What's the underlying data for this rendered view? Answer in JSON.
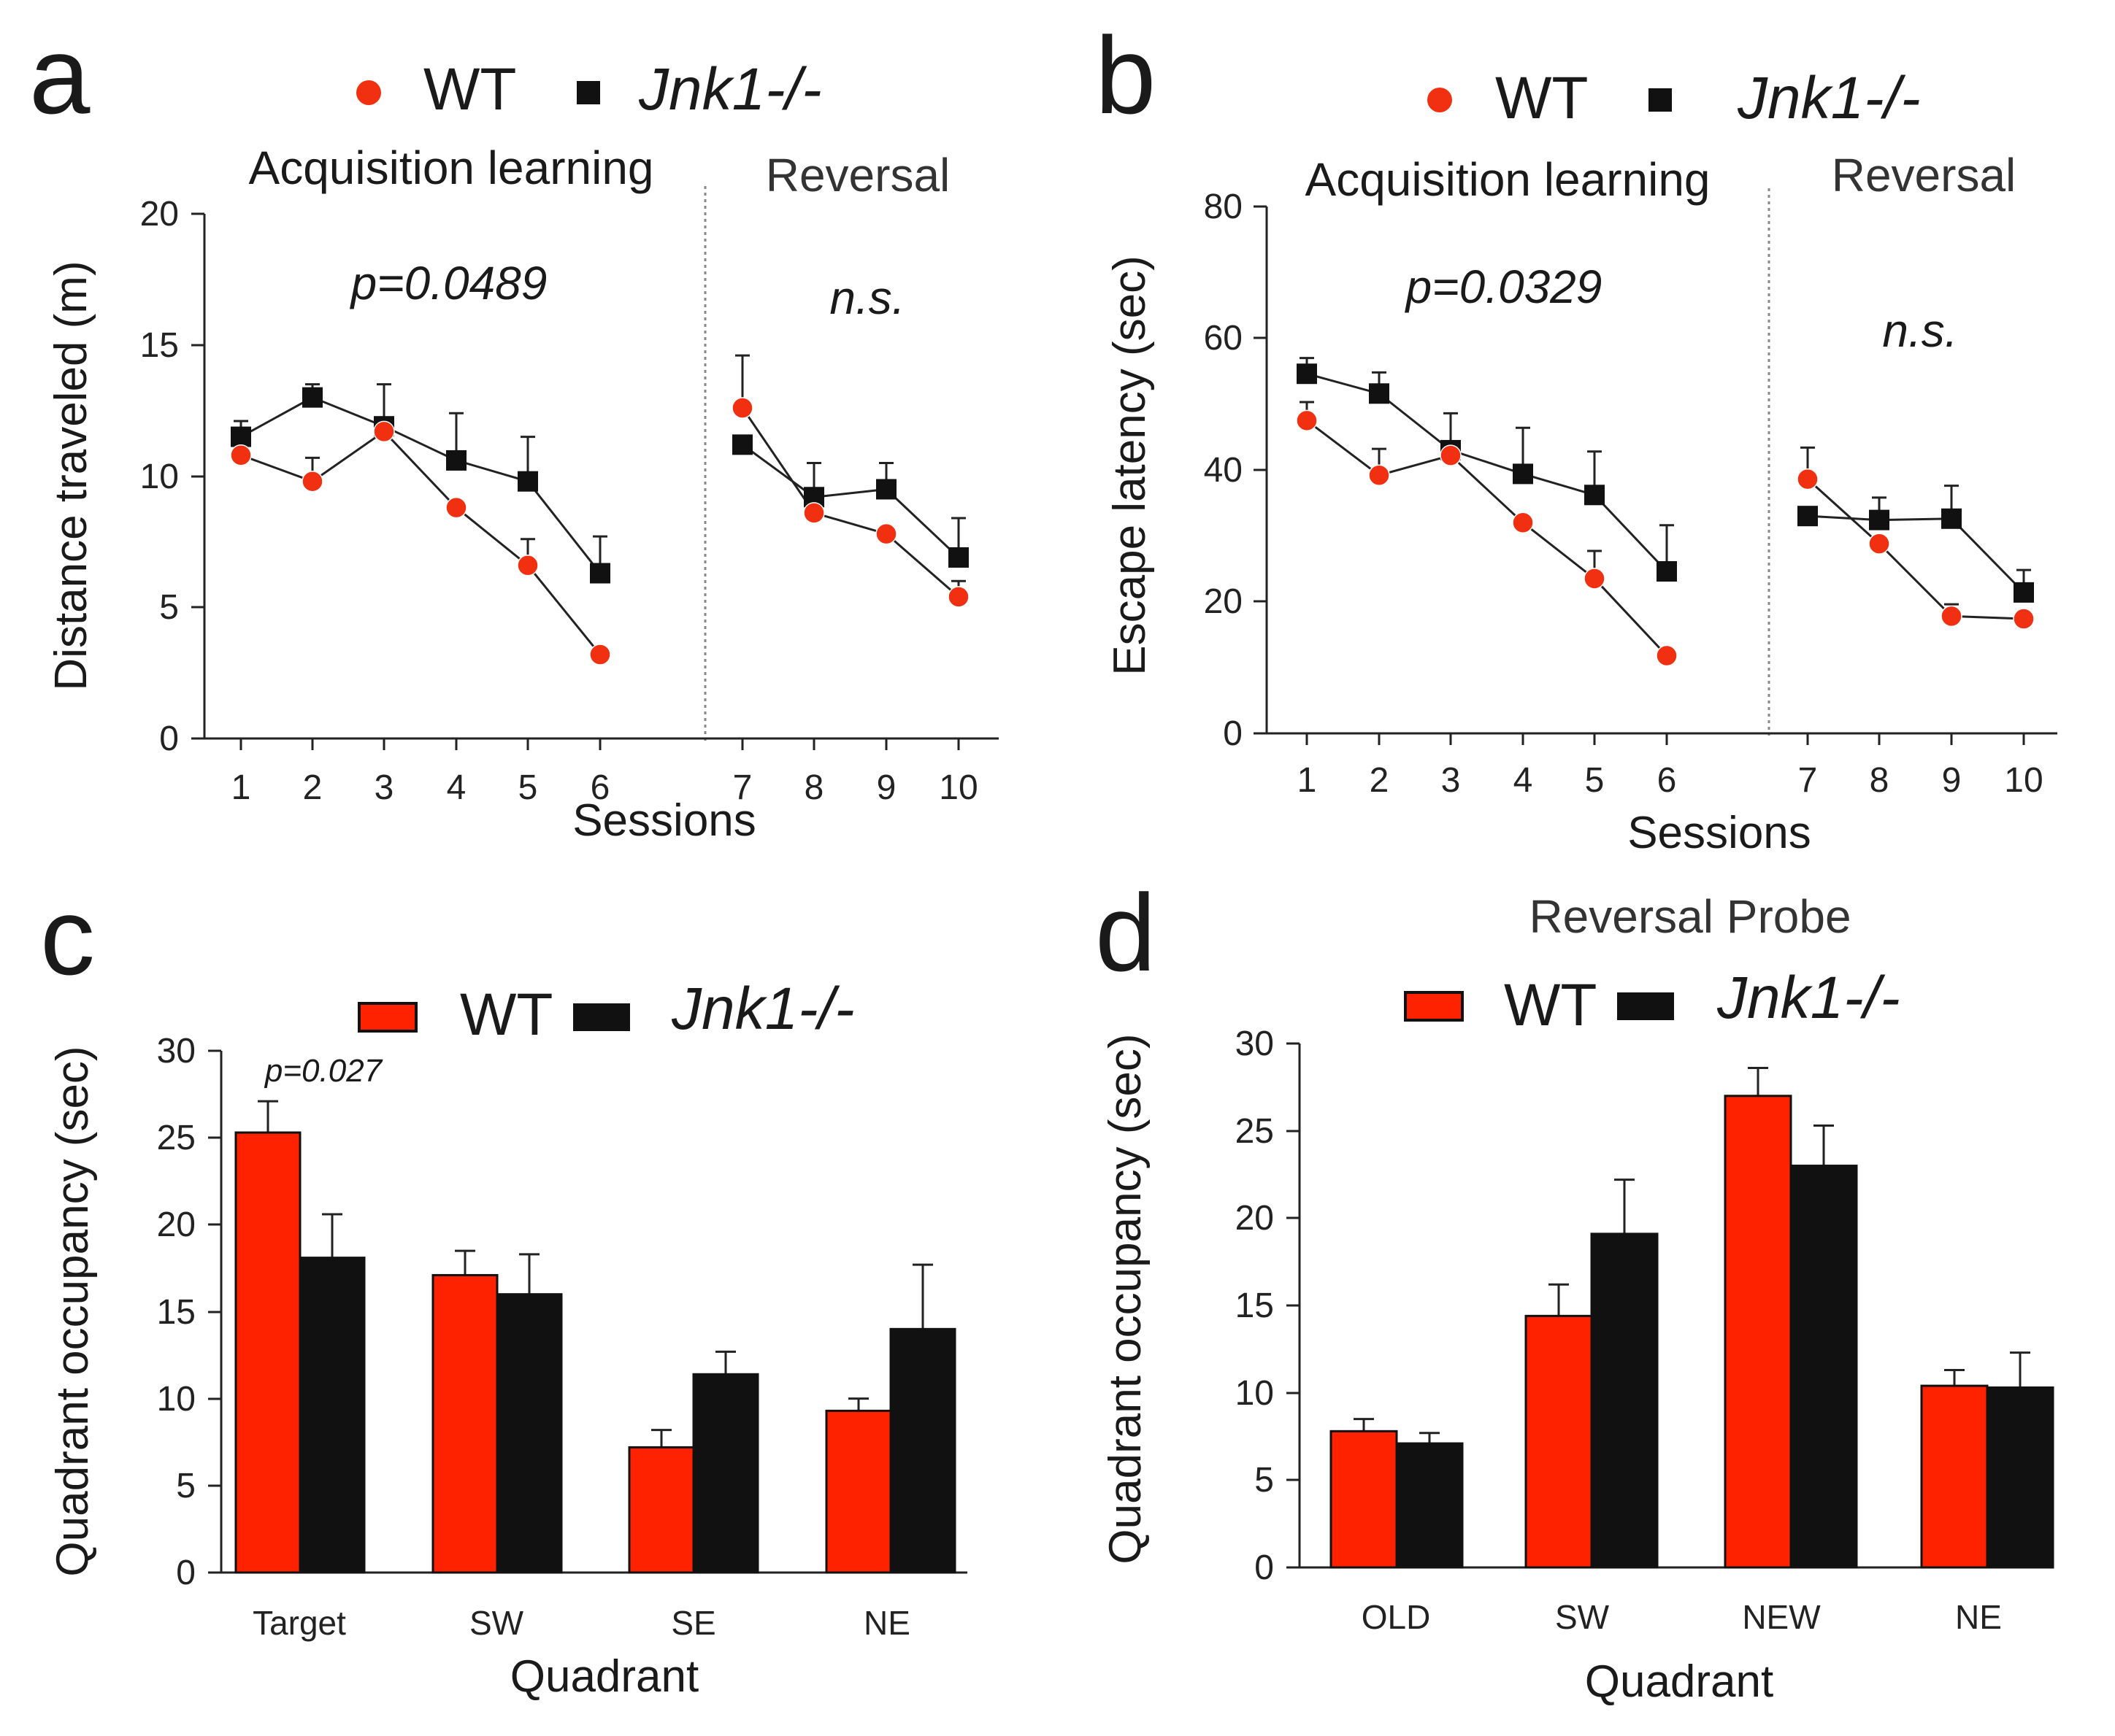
{
  "colors": {
    "wt": "#ff2200",
    "wt_marker": "#f03010",
    "jnk": "#111111"
  },
  "chart_data": [
    {
      "panel": "a",
      "type": "line",
      "legend": {
        "wt": "WT",
        "jnk": "Jnk1-/-"
      },
      "sections": {
        "left": "Acquisition learning",
        "right": "Reversal"
      },
      "stats": {
        "left": "p=0.0489",
        "right": "n.s."
      },
      "xlabel": "Sessions",
      "ylabel": "Distance traveled (m)",
      "ylim": [
        0,
        20
      ],
      "yticks": [
        "0",
        "5",
        "10",
        "15",
        "20"
      ],
      "categories": [
        "1",
        "2",
        "3",
        "4",
        "5",
        "6",
        "7",
        "8",
        "9",
        "10"
      ],
      "series": [
        {
          "name": "WT",
          "values": [
            10.8,
            9.8,
            11.7,
            8.8,
            6.6,
            3.2,
            12.6,
            8.6,
            7.8,
            5.4
          ],
          "errors": [
            0,
            0.9,
            0.3,
            0,
            1.0,
            0,
            2.0,
            0,
            0,
            0.6
          ]
        },
        {
          "name": "Jnk1-/-",
          "values": [
            11.5,
            13.0,
            11.9,
            10.6,
            9.8,
            6.3,
            11.2,
            9.2,
            9.5,
            6.9
          ],
          "errors": [
            0.6,
            0.5,
            1.6,
            1.8,
            1.7,
            1.4,
            0,
            1.3,
            1.0,
            1.5
          ]
        }
      ]
    },
    {
      "panel": "b",
      "type": "line",
      "legend": {
        "wt": "WT",
        "jnk": "Jnk1-/-"
      },
      "sections": {
        "left": "Acquisition learning",
        "right": "Reversal"
      },
      "stats": {
        "left": "p=0.0329",
        "right": "n.s."
      },
      "xlabel": "Sessions",
      "ylabel": "Escape latency (sec)",
      "ylim": [
        0,
        80
      ],
      "yticks": [
        "0",
        "20",
        "40",
        "60",
        "80"
      ],
      "categories": [
        "1",
        "2",
        "3",
        "4",
        "5",
        "6",
        "7",
        "8",
        "9",
        "10"
      ],
      "series": [
        {
          "name": "WT",
          "values": [
            47.5,
            39.2,
            42.2,
            32.0,
            23.5,
            11.8,
            38.6,
            28.8,
            17.8,
            17.4
          ],
          "errors": [
            2.8,
            4.0,
            0,
            0,
            4.2,
            0,
            4.8,
            0,
            1.8,
            0
          ]
        },
        {
          "name": "Jnk1-/-",
          "values": [
            54.6,
            51.6,
            43.0,
            39.4,
            36.2,
            24.6,
            33.0,
            32.4,
            32.6,
            21.4
          ],
          "errors": [
            2.4,
            3.2,
            5.6,
            7.0,
            6.6,
            7.0,
            0,
            3.4,
            5.0,
            3.4
          ]
        }
      ]
    },
    {
      "panel": "c",
      "type": "bar",
      "legend": {
        "wt": "WT",
        "jnk": "Jnk1-/-"
      },
      "stats": {
        "target": "p=0.027"
      },
      "xlabel": "Quadrant",
      "ylabel": "Quadrant occupancy (sec)",
      "ylim": [
        0,
        30
      ],
      "yticks": [
        "0",
        "5",
        "10",
        "15",
        "20",
        "25",
        "30"
      ],
      "categories": [
        "Target",
        "SW",
        "SE",
        "NE"
      ],
      "series": [
        {
          "name": "WT",
          "values": [
            25.3,
            17.1,
            7.2,
            9.3
          ],
          "errors": [
            1.8,
            1.4,
            1.0,
            0.7
          ]
        },
        {
          "name": "Jnk1-/-",
          "values": [
            18.1,
            16.0,
            11.4,
            14.0
          ],
          "errors": [
            2.5,
            2.3,
            1.3,
            3.7
          ]
        }
      ]
    },
    {
      "panel": "d",
      "type": "bar",
      "title": "Reversal Probe",
      "legend": {
        "wt": "WT",
        "jnk": "Jnk1-/-"
      },
      "xlabel": "Quadrant",
      "ylabel": "Quadrant occupancy (sec)",
      "ylim": [
        0,
        30
      ],
      "yticks": [
        "0",
        "5",
        "10",
        "15",
        "20",
        "25",
        "30"
      ],
      "categories": [
        "OLD",
        "SW",
        "NEW",
        "NE"
      ],
      "series": [
        {
          "name": "WT",
          "values": [
            7.8,
            14.4,
            27.0,
            10.4
          ],
          "errors": [
            0.7,
            1.8,
            1.6,
            0.9
          ]
        },
        {
          "name": "Jnk1-/-",
          "values": [
            7.1,
            19.1,
            23.0,
            10.3
          ],
          "errors": [
            0.6,
            3.1,
            2.3,
            2.0
          ]
        }
      ]
    }
  ]
}
